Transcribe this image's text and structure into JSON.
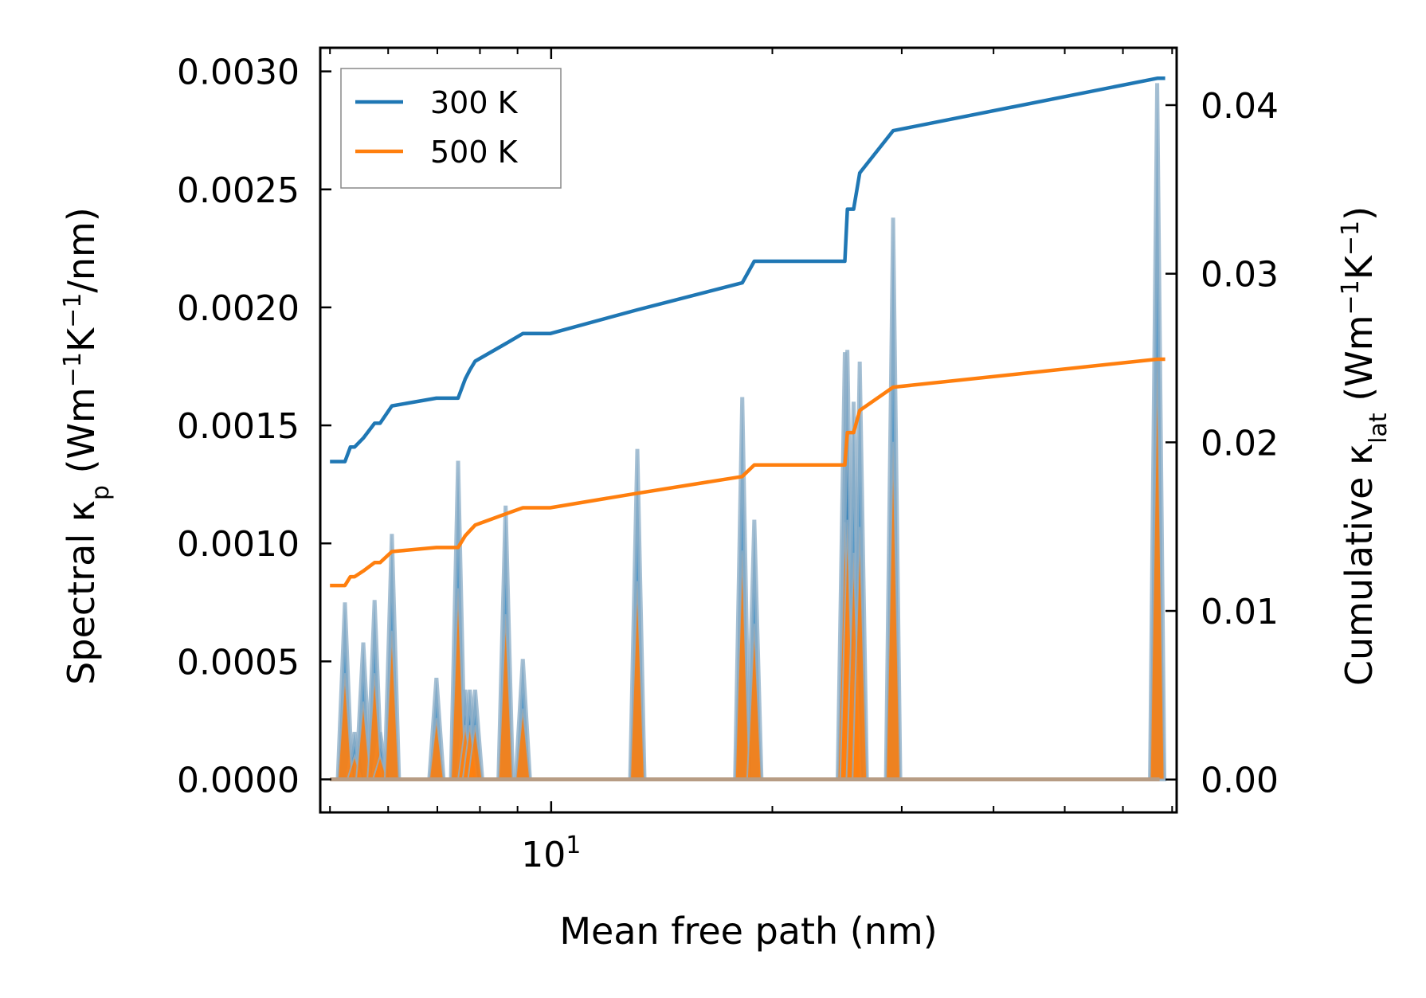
{
  "chart_data": {
    "type": "line",
    "xlabel": "Mean free path (nm)",
    "xscale": "log",
    "xlim": [
      4.85,
      71
    ],
    "x_ticks_major": [
      10
    ],
    "x_tick_labels": [
      {
        "base": "10",
        "exp": "1"
      }
    ],
    "x_ticks_minor": [
      5,
      6,
      7,
      8,
      9,
      20,
      30,
      40,
      50,
      60,
      70
    ],
    "ylabel_left": {
      "text": "Spectral κ",
      "sub": "p",
      "unit": " (Wm",
      "e1": "−1",
      "unit2": "K",
      "e2": "−1",
      "unit3": "/nm)"
    },
    "ylabel_right": {
      "text": "Cumulative κ",
      "sub": "lat",
      "unit": " (Wm",
      "e1": "−1",
      "unit2": "K",
      "e2": "−1",
      "unit3": ")"
    },
    "ylim_left": [
      -0.00014,
      0.0031
    ],
    "ylim_right": [
      -0.00195,
      0.0434
    ],
    "y_ticks_left": [
      "0.0000",
      "0.0005",
      "0.0010",
      "0.0015",
      "0.0020",
      "0.0025",
      "0.0030"
    ],
    "y_ticks_right": [
      "0.00",
      "0.01",
      "0.02",
      "0.03",
      "0.04"
    ],
    "legend": {
      "location": "upper-left",
      "entries": [
        "300 K",
        "500 K"
      ]
    },
    "colors": {
      "300 K": "#1f77b4",
      "500 K": "#ff7f0e",
      "spectral_outline": "#8fafc8",
      "fill_300": "#1f77b4",
      "fill_500": "#ff7f0e"
    },
    "spectral_series": [
      {
        "name": "300 K spectral",
        "x": [
          5,
          5.24,
          5.4,
          5.55,
          5.75,
          5.85,
          6.07,
          6.98,
          7.47,
          7.64,
          7.75,
          7.88,
          8.67,
          9.15,
          9.97
        ],
        "peaks": [
          0,
          0.00075,
          0.0002,
          0.00058,
          0.00076,
          0.0002,
          0.00104,
          0.00043,
          0.00135,
          0.00038,
          0.00038,
          0.00038,
          0.00116,
          0.00051,
          0.0
        ]
      },
      {
        "name": "300 K spectral",
        "x": [
          13.1,
          18.2,
          18.9,
          25.1,
          25.3,
          25.8,
          26.3,
          29.2,
          66.8
        ],
        "peaks": [
          0.0014,
          0.00162,
          0.0011,
          0.00181,
          0.00182,
          0.0016,
          0.00177,
          0.00238,
          0.00295
        ]
      },
      {
        "name": "500 K spectral",
        "x": [
          5,
          5.24,
          5.4,
          5.55,
          5.75,
          5.85,
          6.07,
          6.98,
          7.47,
          7.64,
          7.75,
          7.88,
          8.67,
          9.15,
          9.97
        ],
        "peaks": [
          0,
          0.00045,
          0.0001,
          0.00033,
          0.00045,
          0.0001,
          0.00063,
          0.00026,
          0.00081,
          0.00023,
          0.00023,
          0.00023,
          0.0007,
          0.0003,
          0.0
        ]
      },
      {
        "name": "500 K spectral",
        "x": [
          13.1,
          18.2,
          18.9,
          25.1,
          25.3,
          25.8,
          26.3,
          29.2,
          66.8
        ],
        "peaks": [
          0.00084,
          0.00097,
          0.00066,
          0.00109,
          0.0011,
          0.00096,
          0.00107,
          0.00143,
          0.00178
        ]
      }
    ],
    "cumulative_series": [
      {
        "name": "300 K",
        "x": [
          5.0,
          5.24,
          5.33,
          5.4,
          5.55,
          5.75,
          5.85,
          6.07,
          6.98,
          7.47,
          7.64,
          7.75,
          7.88,
          8.67,
          9.15,
          9.97,
          13.1,
          18.2,
          18.9,
          25.1,
          25.3,
          25.8,
          26.3,
          29.2,
          66.8,
          68.5
        ],
        "y": [
          0.01886,
          0.01886,
          0.01972,
          0.01972,
          0.02025,
          0.02113,
          0.02113,
          0.02216,
          0.02262,
          0.02262,
          0.02376,
          0.02429,
          0.02481,
          0.02585,
          0.02645,
          0.02645,
          0.02786,
          0.02946,
          0.03074,
          0.03074,
          0.03383,
          0.03383,
          0.03598,
          0.03848,
          0.04159,
          0.04159
        ]
      },
      {
        "name": "500 K",
        "x": [
          5.0,
          5.24,
          5.33,
          5.4,
          5.55,
          5.75,
          5.85,
          6.07,
          6.98,
          7.47,
          7.64,
          7.75,
          7.88,
          8.67,
          9.15,
          9.97,
          13.1,
          18.2,
          18.9,
          25.1,
          25.3,
          25.8,
          26.3,
          29.2,
          66.8,
          68.5
        ],
        "y": [
          0.01151,
          0.01151,
          0.01203,
          0.01203,
          0.01237,
          0.01287,
          0.01287,
          0.01352,
          0.01376,
          0.01376,
          0.01446,
          0.01476,
          0.01509,
          0.01575,
          0.01612,
          0.01612,
          0.01698,
          0.01797,
          0.01866,
          0.01866,
          0.02058,
          0.02058,
          0.02189,
          0.02327,
          0.02493,
          0.02493
        ]
      }
    ]
  }
}
